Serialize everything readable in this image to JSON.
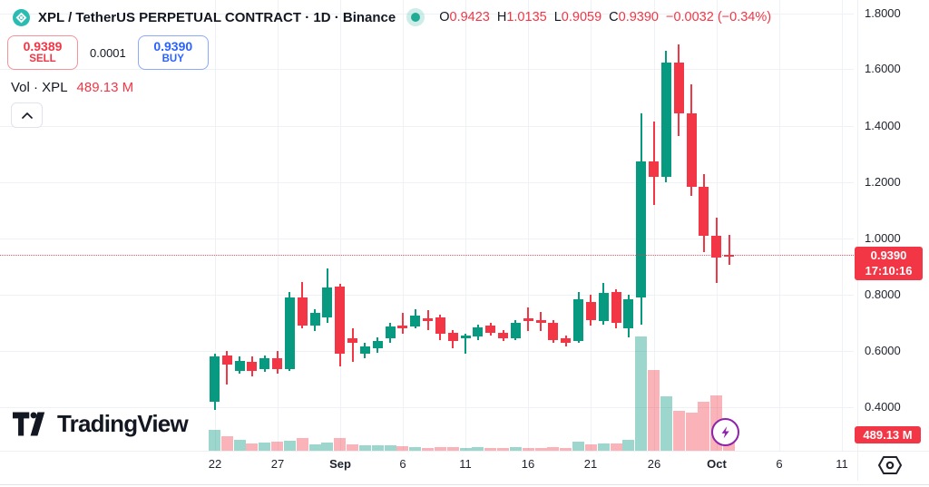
{
  "header": {
    "title": "XPL / TetherUS PERPETUAL CONTRACT · 1D · Binance",
    "ohlc": {
      "o_label": "O",
      "o_value": "0.9423",
      "h_label": "H",
      "h_value": "1.0135",
      "l_label": "L",
      "l_value": "0.9059",
      "c_label": "C",
      "c_value": "0.9390",
      "change": "−0.0032 (−0.34%)"
    }
  },
  "trade_panel": {
    "sell_price": "0.9389",
    "sell_label": "SELL",
    "spread": "0.0001",
    "buy_price": "0.9390",
    "buy_label": "BUY"
  },
  "indicator": {
    "label": "Vol · XPL",
    "value": "489.13 M"
  },
  "price_axis_badges": {
    "last_price": "0.9390",
    "countdown": "17:10:16",
    "volume_value": "489.13 M"
  },
  "watermark": {
    "text": "TradingView"
  },
  "colors": {
    "up": "#089981",
    "down": "#f23645",
    "vol_up": "rgba(8,153,129,0.40)",
    "vol_down": "rgba(242,54,69,0.38)",
    "buy_blue": "#2962ff",
    "sell_red": "#f23645",
    "badge_red": "#f23645",
    "status_green": "#22ab94",
    "lightning_purple": "#8e24aa"
  },
  "chart_data": {
    "type": "candlestick",
    "title": "XPL / TetherUS PERPETUAL CONTRACT · 1D · Binance",
    "grid": true,
    "legend_position": "none",
    "ylim": [
      0.25,
      1.85
    ],
    "y_axis": [
      {
        "label": "1.8000",
        "value": 1.8
      },
      {
        "label": "1.6000",
        "value": 1.6
      },
      {
        "label": "1.4000",
        "value": 1.4
      },
      {
        "label": "1.2000",
        "value": 1.2
      },
      {
        "label": "1.0000",
        "value": 1.0
      },
      {
        "label": "0.8000",
        "value": 0.8
      },
      {
        "label": "0.6000",
        "value": 0.6
      },
      {
        "label": "0.4000",
        "value": 0.4
      }
    ],
    "x_axis": [
      {
        "label": "22",
        "day": 0,
        "bold": false
      },
      {
        "label": "27",
        "day": 5,
        "bold": false
      },
      {
        "label": "Sep",
        "day": 10,
        "bold": true
      },
      {
        "label": "6",
        "day": 15,
        "bold": false
      },
      {
        "label": "11",
        "day": 20,
        "bold": false
      },
      {
        "label": "16",
        "day": 25,
        "bold": false
      },
      {
        "label": "21",
        "day": 30,
        "bold": false
      },
      {
        "label": "26",
        "day": 35,
        "bold": false
      },
      {
        "label": "Oct",
        "day": 40,
        "bold": true
      },
      {
        "label": "6",
        "day": 45,
        "bold": false
      },
      {
        "label": "11",
        "day": 50,
        "bold": false
      }
    ],
    "current_price": 0.939,
    "countdown": "17:10:16",
    "current_volume_label": "489.13 M",
    "volume_note": "v is relative bar height, unlabeled axis; last bar anchors 489.13M",
    "candles": [
      {
        "d": "Aug 22",
        "o": 0.42,
        "h": 0.59,
        "l": 0.39,
        "c": 0.58,
        "v": 23
      },
      {
        "d": "Aug 23",
        "o": 0.585,
        "h": 0.6,
        "l": 0.48,
        "c": 0.55,
        "v": 16
      },
      {
        "d": "Aug 24",
        "o": 0.53,
        "h": 0.58,
        "l": 0.52,
        "c": 0.565,
        "v": 12
      },
      {
        "d": "Aug 25",
        "o": 0.56,
        "h": 0.58,
        "l": 0.51,
        "c": 0.53,
        "v": 8
      },
      {
        "d": "Aug 26",
        "o": 0.535,
        "h": 0.585,
        "l": 0.525,
        "c": 0.575,
        "v": 9
      },
      {
        "d": "Aug 27",
        "o": 0.575,
        "h": 0.6,
        "l": 0.52,
        "c": 0.535,
        "v": 10
      },
      {
        "d": "Aug 28",
        "o": 0.535,
        "h": 0.81,
        "l": 0.53,
        "c": 0.79,
        "v": 11
      },
      {
        "d": "Aug 29",
        "o": 0.79,
        "h": 0.845,
        "l": 0.68,
        "c": 0.69,
        "v": 14
      },
      {
        "d": "Aug 30",
        "o": 0.69,
        "h": 0.75,
        "l": 0.67,
        "c": 0.735,
        "v": 7
      },
      {
        "d": "Aug 31",
        "o": 0.72,
        "h": 0.895,
        "l": 0.7,
        "c": 0.825,
        "v": 9
      },
      {
        "d": "Sep 1",
        "o": 0.83,
        "h": 0.84,
        "l": 0.545,
        "c": 0.59,
        "v": 14
      },
      {
        "d": "Sep 2",
        "o": 0.645,
        "h": 0.68,
        "l": 0.56,
        "c": 0.63,
        "v": 7
      },
      {
        "d": "Sep 3",
        "o": 0.59,
        "h": 0.63,
        "l": 0.575,
        "c": 0.615,
        "v": 6
      },
      {
        "d": "Sep 4",
        "o": 0.61,
        "h": 0.65,
        "l": 0.595,
        "c": 0.635,
        "v": 6
      },
      {
        "d": "Sep 5",
        "o": 0.645,
        "h": 0.7,
        "l": 0.63,
        "c": 0.687,
        "v": 6
      },
      {
        "d": "Sep 6",
        "o": 0.69,
        "h": 0.735,
        "l": 0.66,
        "c": 0.68,
        "v": 5
      },
      {
        "d": "Sep 7",
        "o": 0.687,
        "h": 0.75,
        "l": 0.68,
        "c": 0.725,
        "v": 4
      },
      {
        "d": "Sep 8",
        "o": 0.715,
        "h": 0.745,
        "l": 0.675,
        "c": 0.705,
        "v": 3
      },
      {
        "d": "Sep 9",
        "o": 0.72,
        "h": 0.73,
        "l": 0.64,
        "c": 0.66,
        "v": 4
      },
      {
        "d": "Sep 10",
        "o": 0.665,
        "h": 0.675,
        "l": 0.61,
        "c": 0.635,
        "v": 4
      },
      {
        "d": "Sep 11",
        "o": 0.645,
        "h": 0.66,
        "l": 0.59,
        "c": 0.655,
        "v": 3
      },
      {
        "d": "Sep 12",
        "o": 0.65,
        "h": 0.695,
        "l": 0.64,
        "c": 0.685,
        "v": 4
      },
      {
        "d": "Sep 13",
        "o": 0.69,
        "h": 0.7,
        "l": 0.655,
        "c": 0.665,
        "v": 3
      },
      {
        "d": "Sep 14",
        "o": 0.665,
        "h": 0.675,
        "l": 0.635,
        "c": 0.645,
        "v": 3
      },
      {
        "d": "Sep 15",
        "o": 0.645,
        "h": 0.71,
        "l": 0.64,
        "c": 0.7,
        "v": 4
      },
      {
        "d": "Sep 16",
        "o": 0.715,
        "h": 0.755,
        "l": 0.67,
        "c": 0.705,
        "v": 3
      },
      {
        "d": "Sep 17",
        "o": 0.71,
        "h": 0.74,
        "l": 0.67,
        "c": 0.7,
        "v": 3
      },
      {
        "d": "Sep 18",
        "o": 0.7,
        "h": 0.71,
        "l": 0.63,
        "c": 0.64,
        "v": 4
      },
      {
        "d": "Sep 19",
        "o": 0.645,
        "h": 0.655,
        "l": 0.615,
        "c": 0.63,
        "v": 3
      },
      {
        "d": "Sep 20",
        "o": 0.635,
        "h": 0.81,
        "l": 0.63,
        "c": 0.785,
        "v": 10
      },
      {
        "d": "Sep 21",
        "o": 0.775,
        "h": 0.8,
        "l": 0.69,
        "c": 0.71,
        "v": 7
      },
      {
        "d": "Sep 22",
        "o": 0.705,
        "h": 0.842,
        "l": 0.695,
        "c": 0.805,
        "v": 8
      },
      {
        "d": "Sep 23",
        "o": 0.81,
        "h": 0.82,
        "l": 0.68,
        "c": 0.7,
        "v": 8
      },
      {
        "d": "Sep 24",
        "o": 0.68,
        "h": 0.8,
        "l": 0.65,
        "c": 0.785,
        "v": 12
      },
      {
        "d": "Sep 25",
        "o": 0.79,
        "h": 1.445,
        "l": 0.695,
        "c": 1.275,
        "v": 126
      },
      {
        "d": "Sep 26",
        "o": 1.275,
        "h": 1.415,
        "l": 1.12,
        "c": 1.22,
        "v": 89
      },
      {
        "d": "Sep 27",
        "o": 1.22,
        "h": 1.667,
        "l": 1.2,
        "c": 1.626,
        "v": 60
      },
      {
        "d": "Sep 28",
        "o": 1.625,
        "h": 1.69,
        "l": 1.365,
        "c": 1.445,
        "v": 44
      },
      {
        "d": "Sep 29",
        "o": 1.445,
        "h": 1.548,
        "l": 1.15,
        "c": 1.185,
        "v": 42
      },
      {
        "d": "Sep 30",
        "o": 1.185,
        "h": 1.23,
        "l": 0.95,
        "c": 1.01,
        "v": 54
      },
      {
        "d": "Oct 1",
        "o": 1.01,
        "h": 1.075,
        "l": 0.842,
        "c": 0.932,
        "v": 61
      },
      {
        "d": "Oct 2",
        "o": 0.9423,
        "h": 1.0135,
        "l": 0.9059,
        "c": 0.939,
        "v": 20
      }
    ]
  }
}
